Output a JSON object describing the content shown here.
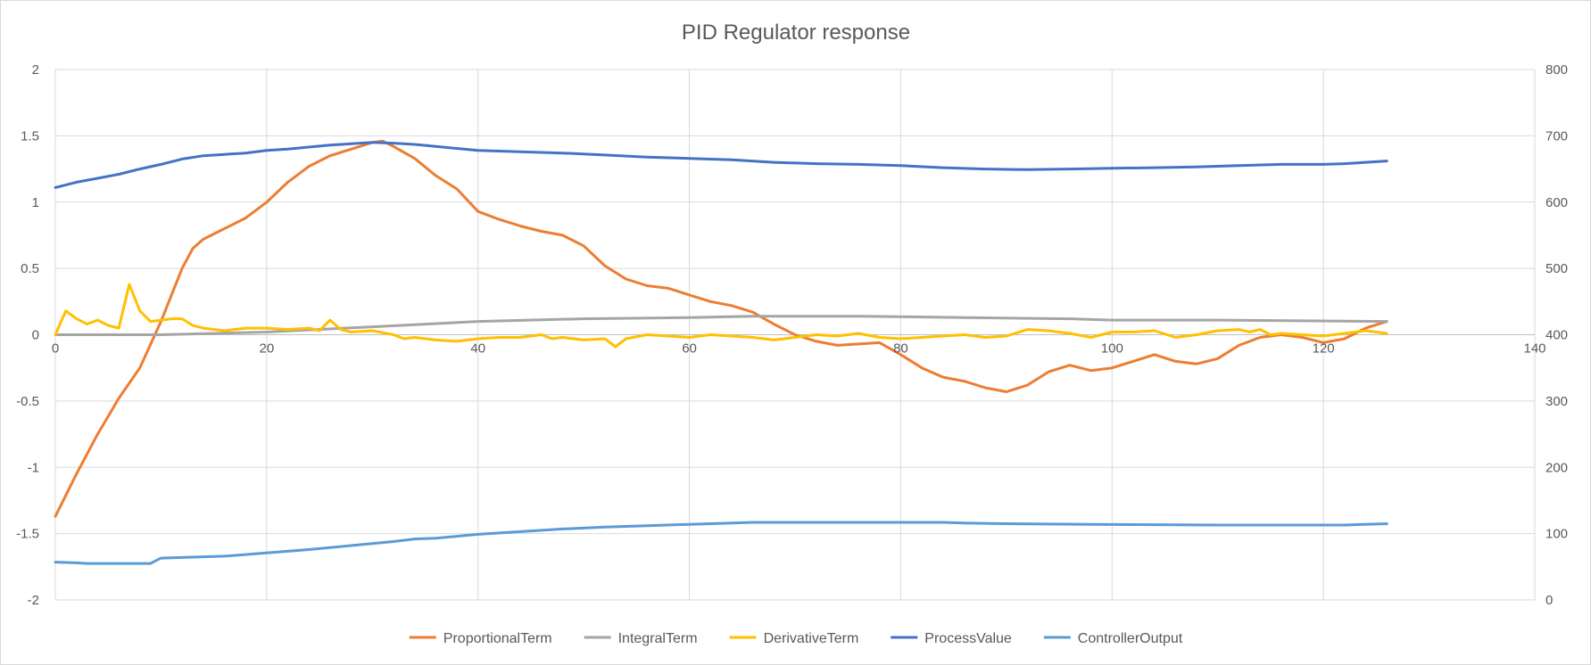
{
  "chart_data": {
    "type": "line",
    "title": "PID Regulator response",
    "x_axis": {
      "min": 0,
      "max": 140,
      "step": 20,
      "tick_labels": [
        "0",
        "20",
        "40",
        "60",
        "80",
        "100",
        "120",
        "140"
      ]
    },
    "y_left": {
      "min": -2,
      "max": 2,
      "step": 0.5,
      "tick_labels": [
        "-2",
        "-1.5",
        "-1",
        "-0.5",
        "0",
        "0.5",
        "1",
        "1.5",
        "2"
      ]
    },
    "y_right": {
      "min": 0,
      "max": 800,
      "step": 100,
      "tick_labels": [
        "0",
        "100",
        "200",
        "300",
        "400",
        "500",
        "600",
        "700",
        "800"
      ]
    },
    "grid": true,
    "legend_position": "bottom",
    "series": [
      {
        "name": "ProportionalTerm",
        "axis": "left",
        "color": "#ED7D31",
        "points": [
          [
            0,
            -1.37
          ],
          [
            2,
            -1.05
          ],
          [
            4,
            -0.75
          ],
          [
            6,
            -0.48
          ],
          [
            8,
            -0.25
          ],
          [
            10,
            0.1
          ],
          [
            12,
            0.5
          ],
          [
            13,
            0.65
          ],
          [
            14,
            0.72
          ],
          [
            16,
            0.8
          ],
          [
            18,
            0.88
          ],
          [
            20,
            1.0
          ],
          [
            22,
            1.15
          ],
          [
            24,
            1.27
          ],
          [
            26,
            1.35
          ],
          [
            28,
            1.4
          ],
          [
            30,
            1.45
          ],
          [
            31,
            1.46
          ],
          [
            32,
            1.42
          ],
          [
            34,
            1.33
          ],
          [
            36,
            1.2
          ],
          [
            38,
            1.1
          ],
          [
            40,
            0.93
          ],
          [
            42,
            0.87
          ],
          [
            44,
            0.82
          ],
          [
            46,
            0.78
          ],
          [
            48,
            0.75
          ],
          [
            50,
            0.67
          ],
          [
            52,
            0.52
          ],
          [
            54,
            0.42
          ],
          [
            56,
            0.37
          ],
          [
            58,
            0.35
          ],
          [
            60,
            0.3
          ],
          [
            62,
            0.25
          ],
          [
            64,
            0.22
          ],
          [
            66,
            0.17
          ],
          [
            68,
            0.08
          ],
          [
            70,
            0.0
          ],
          [
            72,
            -0.05
          ],
          [
            74,
            -0.08
          ],
          [
            76,
            -0.07
          ],
          [
            78,
            -0.06
          ],
          [
            80,
            -0.15
          ],
          [
            82,
            -0.25
          ],
          [
            84,
            -0.32
          ],
          [
            86,
            -0.35
          ],
          [
            88,
            -0.4
          ],
          [
            90,
            -0.43
          ],
          [
            92,
            -0.38
          ],
          [
            94,
            -0.28
          ],
          [
            96,
            -0.23
          ],
          [
            98,
            -0.27
          ],
          [
            100,
            -0.25
          ],
          [
            102,
            -0.2
          ],
          [
            104,
            -0.15
          ],
          [
            106,
            -0.2
          ],
          [
            108,
            -0.22
          ],
          [
            110,
            -0.18
          ],
          [
            112,
            -0.08
          ],
          [
            114,
            -0.02
          ],
          [
            116,
            0.0
          ],
          [
            118,
            -0.02
          ],
          [
            120,
            -0.06
          ],
          [
            122,
            -0.03
          ],
          [
            124,
            0.05
          ],
          [
            126,
            0.1
          ]
        ]
      },
      {
        "name": "IntegralTerm",
        "axis": "left",
        "color": "#A5A5A5",
        "points": [
          [
            0,
            0.0
          ],
          [
            10,
            0.0
          ],
          [
            20,
            0.02
          ],
          [
            30,
            0.06
          ],
          [
            40,
            0.1
          ],
          [
            50,
            0.12
          ],
          [
            60,
            0.13
          ],
          [
            66,
            0.14
          ],
          [
            76,
            0.14
          ],
          [
            86,
            0.13
          ],
          [
            96,
            0.12
          ],
          [
            100,
            0.11
          ],
          [
            110,
            0.11
          ],
          [
            126,
            0.1
          ]
        ]
      },
      {
        "name": "DerivativeTerm",
        "axis": "left",
        "color": "#FFC000",
        "points": [
          [
            0,
            0.0
          ],
          [
            1,
            0.18
          ],
          [
            2,
            0.12
          ],
          [
            3,
            0.08
          ],
          [
            4,
            0.11
          ],
          [
            5,
            0.07
          ],
          [
            6,
            0.05
          ],
          [
            7,
            0.38
          ],
          [
            8,
            0.18
          ],
          [
            9,
            0.1
          ],
          [
            10,
            0.11
          ],
          [
            11,
            0.12
          ],
          [
            12,
            0.12
          ],
          [
            13,
            0.07
          ],
          [
            14,
            0.05
          ],
          [
            16,
            0.03
          ],
          [
            18,
            0.05
          ],
          [
            20,
            0.05
          ],
          [
            22,
            0.04
          ],
          [
            24,
            0.05
          ],
          [
            25,
            0.03
          ],
          [
            26,
            0.11
          ],
          [
            27,
            0.04
          ],
          [
            28,
            0.02
          ],
          [
            30,
            0.03
          ],
          [
            32,
            0.0
          ],
          [
            33,
            -0.03
          ],
          [
            34,
            -0.02
          ],
          [
            36,
            -0.04
          ],
          [
            38,
            -0.05
          ],
          [
            40,
            -0.03
          ],
          [
            42,
            -0.02
          ],
          [
            44,
            -0.02
          ],
          [
            46,
            0.0
          ],
          [
            47,
            -0.03
          ],
          [
            48,
            -0.02
          ],
          [
            50,
            -0.04
          ],
          [
            52,
            -0.03
          ],
          [
            53,
            -0.09
          ],
          [
            54,
            -0.03
          ],
          [
            56,
            0.0
          ],
          [
            58,
            -0.01
          ],
          [
            60,
            -0.02
          ],
          [
            62,
            0.0
          ],
          [
            64,
            -0.01
          ],
          [
            66,
            -0.02
          ],
          [
            68,
            -0.04
          ],
          [
            70,
            -0.02
          ],
          [
            72,
            0.0
          ],
          [
            74,
            -0.01
          ],
          [
            76,
            0.01
          ],
          [
            78,
            -0.02
          ],
          [
            80,
            -0.03
          ],
          [
            82,
            -0.02
          ],
          [
            84,
            -0.01
          ],
          [
            86,
            0.0
          ],
          [
            88,
            -0.02
          ],
          [
            90,
            -0.01
          ],
          [
            92,
            0.04
          ],
          [
            94,
            0.03
          ],
          [
            96,
            0.01
          ],
          [
            98,
            -0.02
          ],
          [
            100,
            0.02
          ],
          [
            102,
            0.02
          ],
          [
            104,
            0.03
          ],
          [
            106,
            -0.02
          ],
          [
            108,
            0.0
          ],
          [
            110,
            0.03
          ],
          [
            112,
            0.04
          ],
          [
            113,
            0.02
          ],
          [
            114,
            0.04
          ],
          [
            115,
            0.0
          ],
          [
            116,
            0.01
          ],
          [
            118,
            0.0
          ],
          [
            120,
            -0.01
          ],
          [
            122,
            0.01
          ],
          [
            124,
            0.03
          ],
          [
            126,
            0.01
          ]
        ]
      },
      {
        "name": "ProcessValue",
        "axis": "right",
        "color": "#4472C4",
        "points": [
          [
            0,
            622
          ],
          [
            2,
            630
          ],
          [
            4,
            636
          ],
          [
            6,
            642
          ],
          [
            8,
            650
          ],
          [
            10,
            657
          ],
          [
            12,
            665
          ],
          [
            14,
            670
          ],
          [
            16,
            672
          ],
          [
            18,
            674
          ],
          [
            20,
            678
          ],
          [
            22,
            680
          ],
          [
            24,
            683
          ],
          [
            26,
            686
          ],
          [
            28,
            688
          ],
          [
            30,
            690
          ],
          [
            32,
            689
          ],
          [
            34,
            687
          ],
          [
            36,
            684
          ],
          [
            38,
            681
          ],
          [
            40,
            678
          ],
          [
            44,
            676
          ],
          [
            48,
            674
          ],
          [
            52,
            671
          ],
          [
            56,
            668
          ],
          [
            60,
            666
          ],
          [
            64,
            664
          ],
          [
            68,
            660
          ],
          [
            72,
            658
          ],
          [
            76,
            657
          ],
          [
            80,
            655
          ],
          [
            84,
            652
          ],
          [
            88,
            650
          ],
          [
            92,
            649
          ],
          [
            96,
            650
          ],
          [
            100,
            651
          ],
          [
            104,
            652
          ],
          [
            108,
            653
          ],
          [
            112,
            655
          ],
          [
            116,
            657
          ],
          [
            120,
            657
          ],
          [
            122,
            658
          ],
          [
            124,
            660
          ],
          [
            126,
            662
          ]
        ]
      },
      {
        "name": "ControllerOutput",
        "axis": "right",
        "color": "#5B9BD5",
        "points": [
          [
            0,
            57
          ],
          [
            2,
            56
          ],
          [
            3,
            55
          ],
          [
            8,
            55
          ],
          [
            9,
            55
          ],
          [
            10,
            63
          ],
          [
            12,
            64
          ],
          [
            16,
            66
          ],
          [
            20,
            71
          ],
          [
            24,
            76
          ],
          [
            28,
            82
          ],
          [
            32,
            88
          ],
          [
            34,
            92
          ],
          [
            36,
            93
          ],
          [
            40,
            99
          ],
          [
            44,
            103
          ],
          [
            48,
            107
          ],
          [
            52,
            110
          ],
          [
            56,
            112
          ],
          [
            60,
            114
          ],
          [
            64,
            116
          ],
          [
            66,
            117
          ],
          [
            70,
            117
          ],
          [
            80,
            117
          ],
          [
            84,
            117
          ],
          [
            86,
            116
          ],
          [
            90,
            115
          ],
          [
            98,
            114
          ],
          [
            110,
            113
          ],
          [
            120,
            113
          ],
          [
            122,
            113
          ],
          [
            124,
            114
          ],
          [
            126,
            115
          ]
        ]
      }
    ]
  }
}
